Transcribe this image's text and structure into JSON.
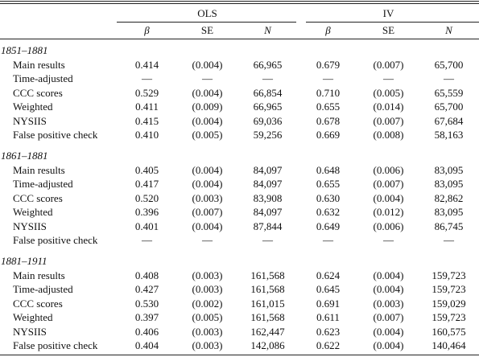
{
  "table": {
    "groups": [
      "OLS",
      "IV"
    ],
    "columns": [
      "β",
      "SE",
      "N",
      "β",
      "SE",
      "N"
    ],
    "sections": [
      {
        "title": "1851–1881",
        "rows": [
          {
            "label": "Main results",
            "cells": [
              "0.414",
              "(0.004)",
              "66,965",
              "0.679",
              "(0.007)",
              "65,700"
            ]
          },
          {
            "label": "Time-adjusted",
            "cells": [
              "—",
              "—",
              "—",
              "—",
              "—",
              "—"
            ]
          },
          {
            "label": "CCC scores",
            "cells": [
              "0.529",
              "(0.004)",
              "66,854",
              "0.710",
              "(0.005)",
              "65,559"
            ]
          },
          {
            "label": "Weighted",
            "cells": [
              "0.411",
              "(0.009)",
              "66,965",
              "0.655",
              "(0.014)",
              "65,700"
            ]
          },
          {
            "label": "NYSIIS",
            "cells": [
              "0.415",
              "(0.004)",
              "69,036",
              "0.678",
              "(0.007)",
              "67,684"
            ]
          },
          {
            "label": "False positive check",
            "cells": [
              "0.410",
              "(0.005)",
              "59,256",
              "0.669",
              "(0.008)",
              "58,163"
            ]
          }
        ]
      },
      {
        "title": "1861–1881",
        "rows": [
          {
            "label": "Main results",
            "cells": [
              "0.405",
              "(0.004)",
              "84,097",
              "0.648",
              "(0.006)",
              "83,095"
            ]
          },
          {
            "label": "Time-adjusted",
            "cells": [
              "0.417",
              "(0.004)",
              "84,097",
              "0.655",
              "(0.007)",
              "83,095"
            ]
          },
          {
            "label": "CCC scores",
            "cells": [
              "0.520",
              "(0.003)",
              "83,908",
              "0.630",
              "(0.004)",
              "82,862"
            ]
          },
          {
            "label": "Weighted",
            "cells": [
              "0.396",
              "(0.007)",
              "84,097",
              "0.632",
              "(0.012)",
              "83,095"
            ]
          },
          {
            "label": "NYSIIS",
            "cells": [
              "0.401",
              "(0.004)",
              "87,844",
              "0.649",
              "(0.006)",
              "86,745"
            ]
          },
          {
            "label": "False positive check",
            "cells": [
              "—",
              "—",
              "—",
              "—",
              "—",
              "—"
            ]
          }
        ]
      },
      {
        "title": "1881–1911",
        "rows": [
          {
            "label": "Main results",
            "cells": [
              "0.408",
              "(0.003)",
              "161,568",
              "0.624",
              "(0.004)",
              "159,723"
            ]
          },
          {
            "label": "Time-adjusted",
            "cells": [
              "0.427",
              "(0.003)",
              "161,568",
              "0.645",
              "(0.004)",
              "159,723"
            ]
          },
          {
            "label": "CCC scores",
            "cells": [
              "0.530",
              "(0.002)",
              "161,015",
              "0.691",
              "(0.003)",
              "159,029"
            ]
          },
          {
            "label": "Weighted",
            "cells": [
              "0.397",
              "(0.005)",
              "161,568",
              "0.611",
              "(0.007)",
              "159,723"
            ]
          },
          {
            "label": "NYSIIS",
            "cells": [
              "0.406",
              "(0.003)",
              "162,447",
              "0.623",
              "(0.004)",
              "160,575"
            ]
          },
          {
            "label": "False positive check",
            "cells": [
              "0.404",
              "(0.003)",
              "142,086",
              "0.622",
              "(0.004)",
              "140,464"
            ]
          }
        ]
      }
    ]
  }
}
